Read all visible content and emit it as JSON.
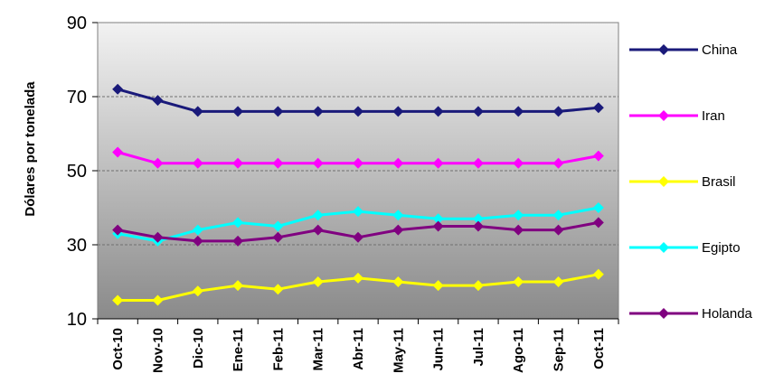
{
  "chart_data": {
    "type": "line",
    "title": "",
    "xlabel": "",
    "ylabel": "Dólares por tonelada",
    "ylim": [
      10,
      90
    ],
    "yticks": [
      "10",
      "30",
      "50",
      "70",
      "90"
    ],
    "categories": [
      "Oct-10",
      "Nov-10",
      "Dic-10",
      "Ene-11",
      "Feb-11",
      "Mar-11",
      "Abr-11",
      "May-11",
      "Jun-11",
      "Jul-11",
      "Ago-11",
      "Sep-11",
      "Oct-11"
    ],
    "legend_position": "right",
    "grid": "horizontal dashed",
    "series": [
      {
        "name": "China",
        "color": "#1a1a7a",
        "values": [
          72,
          69,
          66,
          66,
          66,
          66,
          66,
          66,
          66,
          66,
          66,
          66,
          67
        ]
      },
      {
        "name": "Iran",
        "color": "#ff00ff",
        "values": [
          55,
          52,
          52,
          52,
          52,
          52,
          52,
          52,
          52,
          52,
          52,
          52,
          54
        ]
      },
      {
        "name": "Brasil",
        "color": "#ffff00",
        "values": [
          15,
          15,
          17.5,
          19,
          18,
          20,
          21,
          20,
          19,
          19,
          20,
          20,
          22
        ]
      },
      {
        "name": "Egipto",
        "color": "#00ffff",
        "values": [
          33,
          31,
          34,
          36,
          35,
          38,
          39,
          38,
          37,
          37,
          38,
          38,
          40
        ]
      },
      {
        "name": "Holanda",
        "color": "#800080",
        "values": [
          34,
          32,
          31,
          31,
          32,
          34,
          32,
          34,
          35,
          35,
          34,
          34,
          36
        ]
      }
    ]
  }
}
